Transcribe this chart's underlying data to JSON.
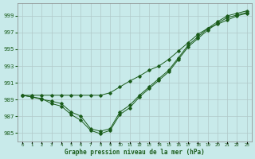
{
  "title": "Graphe pression niveau de la mer (hPa)",
  "bg_color": "#c8eaea",
  "grid_color": "#b0c8c8",
  "line_color": "#1a5c1a",
  "xlim": [
    -0.5,
    23.5
  ],
  "ylim": [
    984.0,
    1000.5
  ],
  "yticks": [
    985,
    987,
    989,
    991,
    993,
    995,
    997,
    999
  ],
  "xticks": [
    0,
    1,
    2,
    3,
    4,
    5,
    6,
    7,
    8,
    9,
    10,
    11,
    12,
    13,
    14,
    15,
    16,
    17,
    18,
    19,
    20,
    21,
    22,
    23
  ],
  "series1": [
    989.5,
    989.3,
    989.0,
    988.8,
    988.5,
    987.5,
    987.0,
    985.5,
    985.2,
    985.5,
    987.5,
    988.3,
    989.5,
    990.5,
    991.5,
    992.5,
    994.0,
    995.5,
    996.5,
    997.5,
    998.3,
    999.0,
    999.3,
    999.6
  ],
  "series2": [
    989.5,
    989.3,
    989.1,
    988.5,
    988.2,
    987.2,
    986.5,
    985.3,
    984.9,
    985.3,
    987.2,
    988.0,
    989.3,
    990.3,
    991.3,
    992.3,
    993.8,
    995.3,
    996.3,
    997.3,
    998.1,
    998.8,
    999.1,
    999.4
  ],
  "series3": [
    989.5,
    989.5,
    989.5,
    989.5,
    989.5,
    989.5,
    989.5,
    989.5,
    989.5,
    989.8,
    990.5,
    991.2,
    991.8,
    992.5,
    993.0,
    993.8,
    994.8,
    995.8,
    996.8,
    997.5,
    998.0,
    998.5,
    999.0,
    999.3
  ]
}
